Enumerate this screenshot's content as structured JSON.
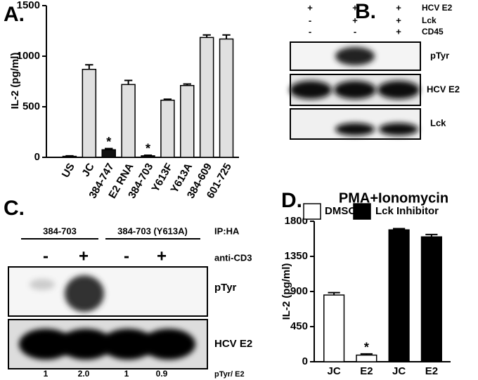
{
  "chart_data": [
    {
      "type": "bar",
      "label": "A.",
      "y_label": "IL-2 (pg/ml)",
      "categories": [
        "US",
        "JC",
        "384-747",
        "E2 RNA",
        "384-703",
        "Y613F",
        "Y613A",
        "384-609",
        "601-725"
      ],
      "values": [
        10,
        870,
        75,
        720,
        15,
        565,
        710,
        1185,
        1170
      ],
      "errors": [
        5,
        45,
        12,
        40,
        6,
        10,
        15,
        25,
        40
      ],
      "colors": [
        "#e0e0e0",
        "#e0e0e0",
        "#111111",
        "#e0e0e0",
        "#111111",
        "#e0e0e0",
        "#e0e0e0",
        "#e0e0e0",
        "#e0e0e0"
      ],
      "annotations": [
        "*",
        "*"
      ],
      "ylim": [
        0,
        1500
      ],
      "yticks": [
        0,
        500,
        1000,
        1500
      ]
    },
    {
      "type": "bar",
      "label": "D.",
      "title": "PMA+Ionomycin",
      "y_label": "IL-2 (pg/ml)",
      "categories": [
        "JC",
        "E2",
        "JC",
        "E2"
      ],
      "series": [
        {
          "name": "DMSO",
          "color": "#ffffff",
          "values": [
            855,
            85,
            null,
            null
          ],
          "errors": [
            30,
            15,
            null,
            null
          ]
        },
        {
          "name": "Lck Inhibitor",
          "color": "#000000",
          "values": [
            null,
            null,
            1690,
            1600
          ],
          "errors": [
            null,
            null,
            15,
            30
          ]
        }
      ],
      "annotations": [
        "*"
      ],
      "ylim": [
        0,
        1800
      ],
      "yticks": [
        0,
        450,
        900,
        1350,
        1800
      ]
    }
  ],
  "panel_b": {
    "label": "B.",
    "conditions": [
      {
        "signs": [
          "+",
          "+",
          "+"
        ],
        "name": "HCV E2"
      },
      {
        "signs": [
          "-",
          "+",
          "+"
        ],
        "name": "Lck"
      },
      {
        "signs": [
          "-",
          "-",
          "+"
        ],
        "name": "CD45"
      }
    ],
    "blots": [
      "pTyr",
      "HCV E2",
      "Lck"
    ]
  },
  "panel_c": {
    "label": "C.",
    "groups": [
      "384-703",
      "384-703 (Y613A)"
    ],
    "ip": "IP:HA",
    "signs": [
      "-",
      "+",
      "-",
      "+"
    ],
    "treatment": "anti-CD3",
    "blots": [
      "pTyr",
      "HCV E2"
    ],
    "ratios": [
      "1",
      "2.0",
      "1",
      "0.9"
    ],
    "ratio_label": "pTyr/ E2"
  }
}
